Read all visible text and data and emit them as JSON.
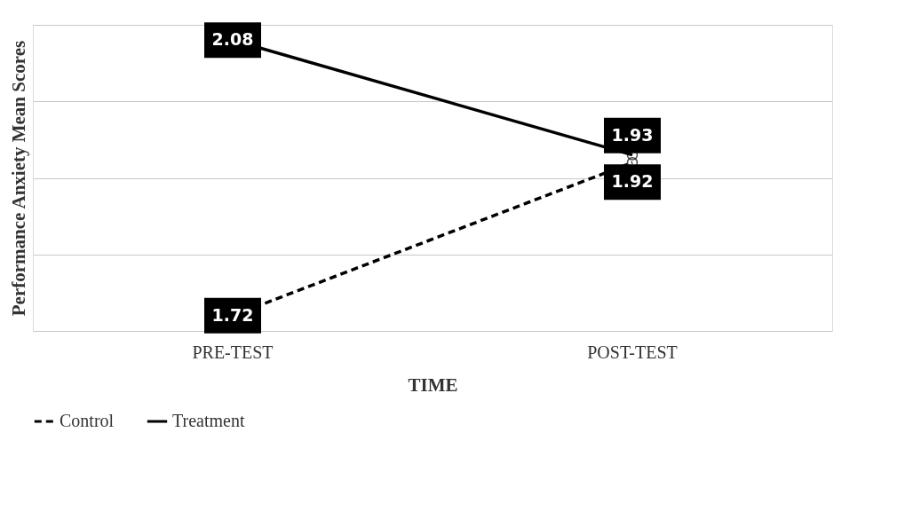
{
  "chart_data": {
    "type": "line",
    "xlabel": "TIME",
    "ylabel": "Performance Anxiety Mean Scores",
    "categories": [
      "PRE-TEST",
      "POST-TEST"
    ],
    "series": [
      {
        "name": "Control",
        "color": "#000000",
        "line_style": "dashed",
        "values": [
          1.72,
          1.92
        ]
      },
      {
        "name": "Treatment",
        "color": "#000000",
        "line_style": "solid",
        "values": [
          2.08,
          1.93
        ]
      }
    ],
    "ylim": [
      1.7,
      2.1
    ],
    "yticks": [
      {
        "value": 1.7,
        "label": null
      },
      {
        "value": 1.8,
        "label": null
      },
      {
        "value": 1.9,
        "label": null
      },
      {
        "value": 2.0,
        "label": null
      },
      {
        "value": 2.1,
        "label": null
      }
    ],
    "tick_labels": "x",
    "grid": "y",
    "legend": "bottom",
    "marker": "circle",
    "data_labels": true
  }
}
